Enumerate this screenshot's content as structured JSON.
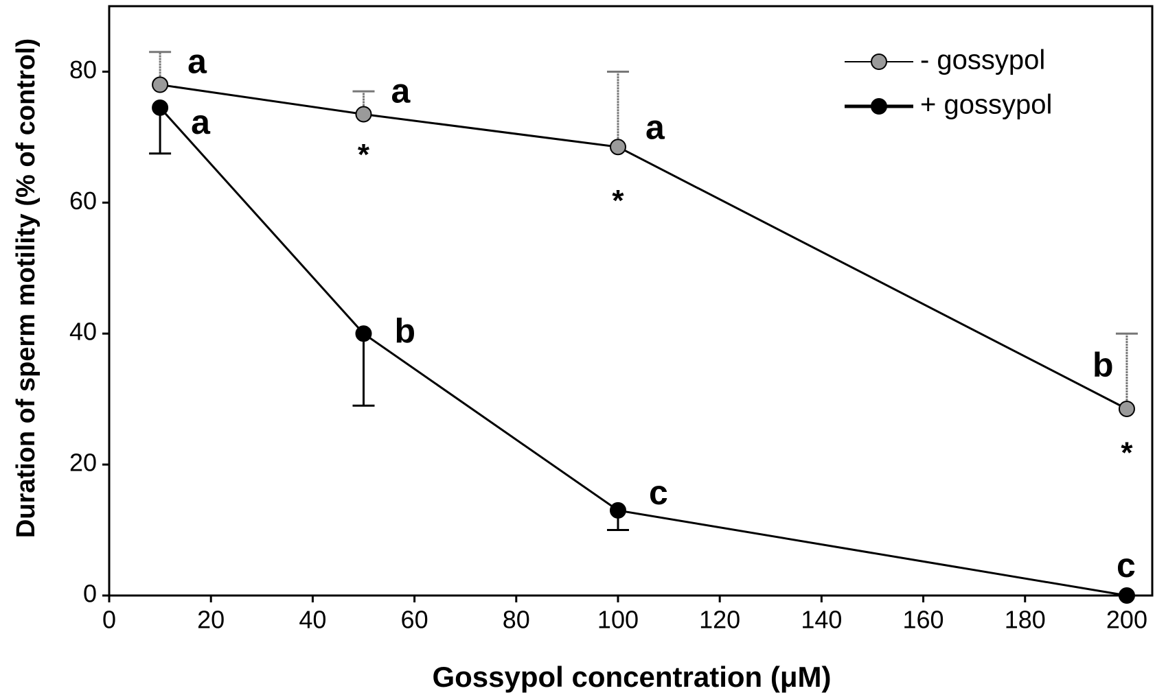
{
  "chart_data": {
    "type": "line",
    "x_label": "Gossypol concentration (μM)",
    "y_label": "Duration of sperm motility (% of control)",
    "x": [
      10,
      50,
      100,
      200
    ],
    "series": [
      {
        "name": "- gossypol",
        "color": "#9a9a9a",
        "values": [
          78,
          73.5,
          68.5,
          28.5
        ],
        "errors": [
          5,
          3.5,
          11.5,
          11.5
        ],
        "error_direction": "up",
        "letters": [
          "a",
          "a",
          "a",
          "b"
        ]
      },
      {
        "name": "+ gossypol",
        "color": "#000000",
        "values": [
          74.5,
          40,
          13,
          0
        ],
        "errors": [
          7,
          11,
          3,
          0
        ],
        "error_direction": "down",
        "letters": [
          "a",
          "b",
          "c",
          "c"
        ]
      }
    ],
    "annotations": [
      {
        "text": "*",
        "x": 50,
        "y": 67
      },
      {
        "text": "*",
        "x": 100,
        "y": 60
      },
      {
        "text": "*",
        "x": 200,
        "y": 21.5
      }
    ],
    "xlim": [
      0,
      205
    ],
    "ylim": [
      0,
      90
    ],
    "xticks": [
      0,
      20,
      40,
      60,
      80,
      100,
      120,
      140,
      160,
      180,
      200
    ],
    "yticks": [
      0,
      20,
      40,
      60,
      80
    ],
    "legend": "upper right"
  }
}
